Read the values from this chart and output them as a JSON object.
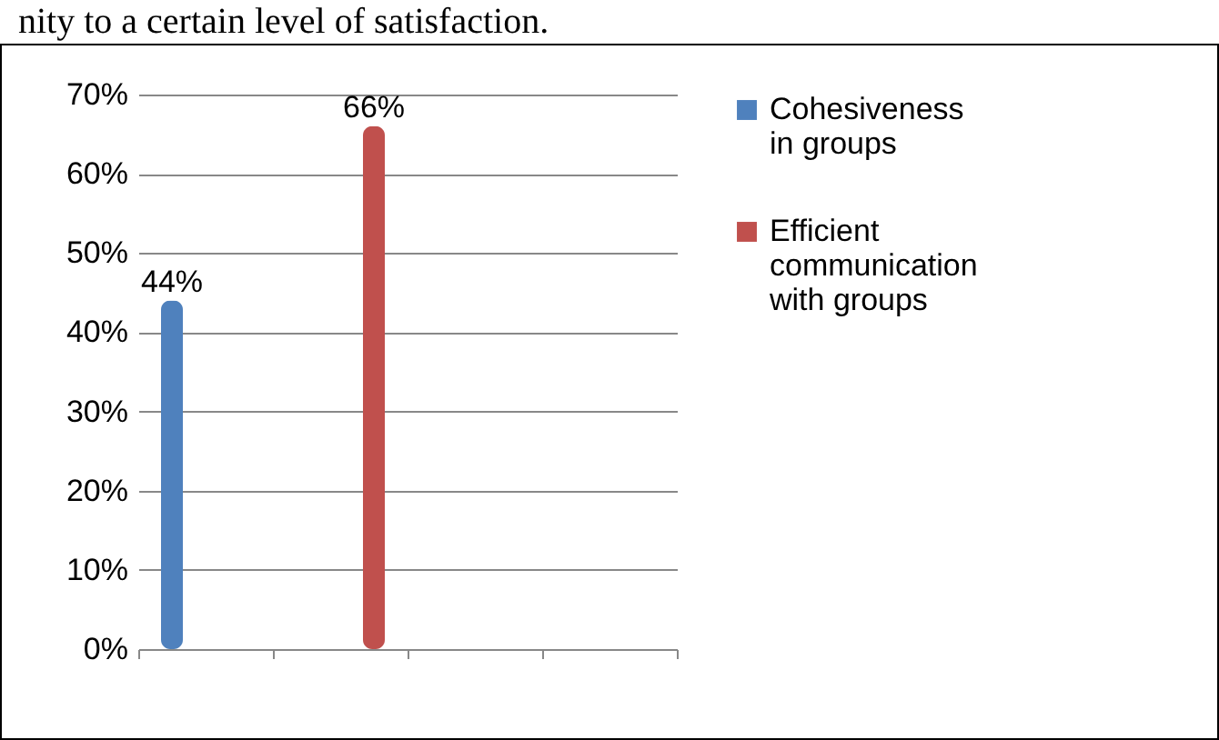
{
  "chart_data": {
    "type": "bar",
    "annotations": [
      "nity to a certain level of satisfaction."
    ],
    "categories": [
      null,
      null,
      null,
      null
    ],
    "series": [
      {
        "name": "Cohesiveness in groups",
        "color": "#4f81bd",
        "values": [
          44,
          null,
          null,
          null
        ],
        "value_labels": [
          "44%",
          null,
          null,
          null
        ]
      },
      {
        "name": "Efficient communication with groups",
        "color": "#c0504d",
        "values": [
          null,
          66,
          null,
          null
        ],
        "value_labels": [
          null,
          "66%",
          null,
          null
        ]
      }
    ],
    "ylim": [
      0,
      70
    ],
    "yticks": [
      {
        "value": 0,
        "label": "0%"
      },
      {
        "value": 10,
        "label": "10%"
      },
      {
        "value": 20,
        "label": "20%"
      },
      {
        "value": 30,
        "label": "30%"
      },
      {
        "value": 40,
        "label": "40%"
      },
      {
        "value": 50,
        "label": "50%"
      },
      {
        "value": 60,
        "label": "60%"
      },
      {
        "value": 70,
        "label": "70%"
      }
    ],
    "grid": "y",
    "legend": "right"
  }
}
